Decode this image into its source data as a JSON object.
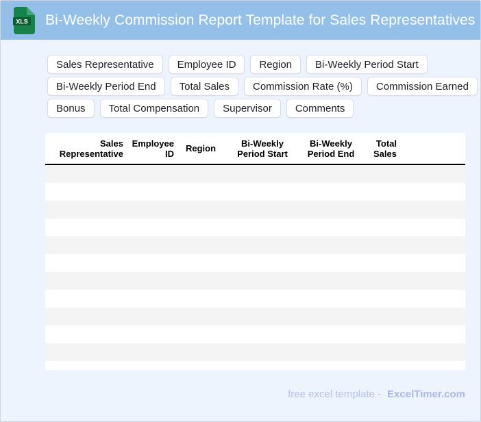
{
  "header": {
    "title": "Bi-Weekly Commission Report Template for Sales Representatives",
    "file_badge": "XLS"
  },
  "chips": {
    "rows": [
      [
        "Sales Representative",
        "Employee ID",
        "Region",
        "Bi-Weekly Period Start"
      ],
      [
        "Bi-Weekly Period End",
        "Total Sales",
        "Commission Rate (%)",
        "Commission Earned"
      ],
      [
        "Bonus",
        "Total Compensation",
        "Supervisor",
        "Comments"
      ]
    ]
  },
  "table": {
    "columns": [
      {
        "label": "Sales Representative",
        "align": "right"
      },
      {
        "label": "Employee ID",
        "align": "right"
      },
      {
        "label": "Region",
        "align": "left"
      },
      {
        "label": "Bi-Weekly Period Start",
        "align": "center"
      },
      {
        "label": "Bi-Weekly Period End",
        "align": "center"
      },
      {
        "label": "Total Sales",
        "align": "right"
      }
    ],
    "empty_row_count": 11
  },
  "footer": {
    "prefix": "free excel template -",
    "brand": "ExcelTimer.com"
  },
  "colors": {
    "header_bg": "#93bfe9",
    "page_bg": "#edf4fd",
    "row_stripe": "#f5f4f5",
    "table_header_rule": "#000000",
    "chip_border": "#d8dbe1",
    "footer_text": "#b5c1ea",
    "brand_text": "#a9b8e9",
    "icon_green": "#17834a",
    "icon_band_green": "#0c5c32",
    "icon_fold_green": "#3fa571"
  }
}
